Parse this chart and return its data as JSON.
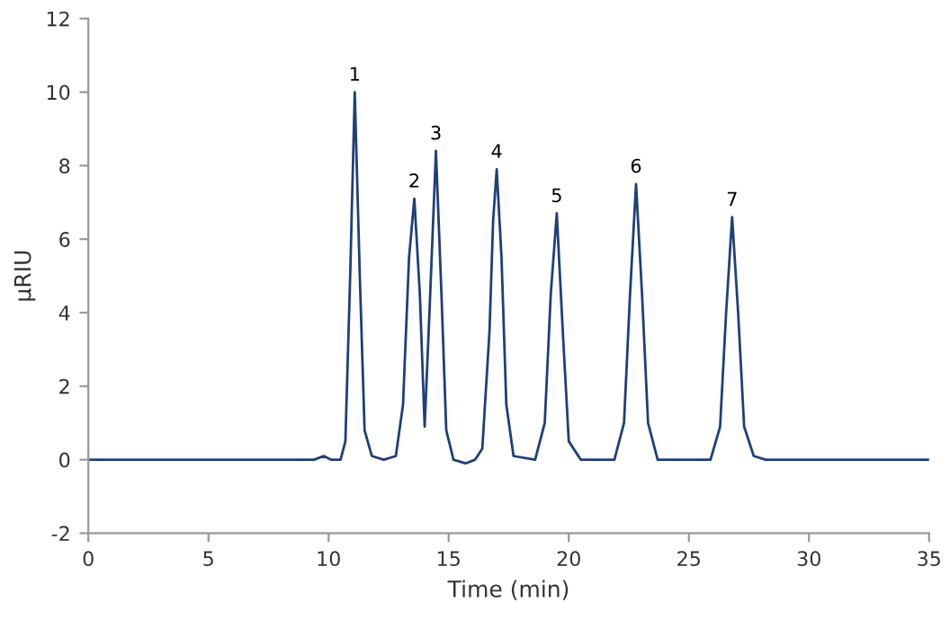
{
  "chart_data": {
    "type": "line",
    "xlabel": "Time (min)",
    "ylabel": "µRIU",
    "xlim": [
      0,
      35
    ],
    "ylim": [
      -2,
      12
    ],
    "xticks": [
      0,
      5,
      10,
      15,
      20,
      25,
      30,
      35
    ],
    "yticks": [
      -2,
      0,
      2,
      4,
      6,
      8,
      10,
      12
    ],
    "grid": false,
    "marker": "none",
    "line_style": "solid",
    "series": [
      {
        "color": "#1f3f7a",
        "x": [
          0,
          9.4,
          9.8,
          10.1,
          10.5,
          10.7,
          10.9,
          11.09,
          11.3,
          11.5,
          11.8,
          12.3,
          12.8,
          13.1,
          13.35,
          13.57,
          13.8,
          14.0,
          14.2,
          14.47,
          14.7,
          14.9,
          15.2,
          15.7,
          16.1,
          16.4,
          16.7,
          16.85,
          17.0,
          17.2,
          17.4,
          17.7,
          18.6,
          19.0,
          19.25,
          19.5,
          19.75,
          20.0,
          20.5,
          21.9,
          22.3,
          22.55,
          22.8,
          23.05,
          23.3,
          23.7,
          25.9,
          26.3,
          26.55,
          26.8,
          27.05,
          27.3,
          27.7,
          28.2,
          35
        ],
        "values": [
          0,
          0,
          0.1,
          0,
          0,
          0.5,
          5.0,
          10.0,
          5.0,
          0.8,
          0.1,
          0,
          0.1,
          1.5,
          5.5,
          7.1,
          4.5,
          0.9,
          4.0,
          8.4,
          4.5,
          0.8,
          0,
          -0.1,
          0,
          0.3,
          3.5,
          6.5,
          7.9,
          5.5,
          1.5,
          0.1,
          0,
          1.0,
          4.5,
          6.7,
          3.5,
          0.5,
          0,
          0,
          1.0,
          4.5,
          7.5,
          4.5,
          1.0,
          0,
          0,
          0.9,
          4.0,
          6.6,
          4.0,
          0.9,
          0.1,
          0,
          0
        ]
      }
    ],
    "annotations": [
      {
        "text": "1",
        "x": 11.09,
        "y": 10.0
      },
      {
        "text": "2",
        "x": 13.57,
        "y": 7.1
      },
      {
        "text": "3",
        "x": 14.47,
        "y": 8.4
      },
      {
        "text": "4",
        "x": 17.0,
        "y": 7.9
      },
      {
        "text": "5",
        "x": 19.5,
        "y": 6.7
      },
      {
        "text": "6",
        "x": 22.8,
        "y": 7.5
      },
      {
        "text": "7",
        "x": 26.8,
        "y": 6.6
      }
    ]
  }
}
